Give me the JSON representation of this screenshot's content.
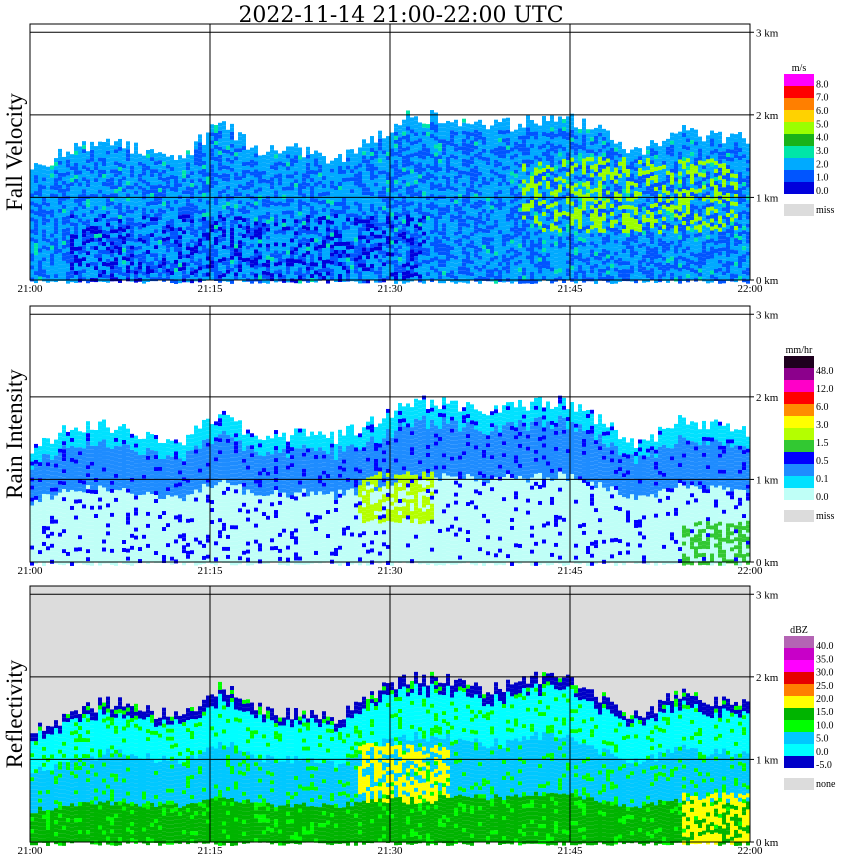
{
  "title": "2022-11-14   21:00-22:00 UTC",
  "x_ticks": [
    "21:00",
    "21:15",
    "21:30",
    "21:45",
    "22:00"
  ],
  "y_ticks": [
    "0 km",
    "1 km",
    "2 km",
    "3 km"
  ],
  "chart_data": [
    {
      "type": "heatmap",
      "ylabel": "Fall Velocity",
      "xlabel": "",
      "x_range": [
        "21:00",
        "22:00"
      ],
      "y_range_km": [
        0,
        3.1
      ],
      "legend": {
        "unit": "m/s",
        "labels": [
          "8.0",
          "7.0",
          "6.0",
          "5.0",
          "4.0",
          "3.0",
          "2.0",
          "1.0",
          "0.0"
        ],
        "colors": [
          "#ff00ff",
          "#ff0000",
          "#ff7f00",
          "#ffd200",
          "#9aff00",
          "#19b219",
          "#00e6a8",
          "#00aaff",
          "#0055ff",
          "#0000dc"
        ],
        "missing_label": "miss",
        "missing_color": "#dcdcdc"
      },
      "echo_top_km": [
        1.3,
        1.6,
        1.7,
        1.55,
        1.5,
        1.9,
        1.55,
        1.6,
        1.45,
        1.7,
        2.0,
        1.95,
        1.85,
        1.9,
        2.0,
        1.8,
        1.55,
        1.8,
        1.75,
        1.7
      ],
      "background": "#ffffff"
    },
    {
      "type": "heatmap",
      "ylabel": "Rain Intensity",
      "xlabel": "",
      "x_range": [
        "21:00",
        "22:00"
      ],
      "y_range_km": [
        0,
        3.1
      ],
      "legend": {
        "unit": "mm/hr",
        "labels": [
          "48.0",
          "12.0",
          "6.0",
          "3.0",
          "1.5",
          "0.5",
          "0.1",
          "0.0"
        ],
        "colors": [
          "#1e001e",
          "#8c008c",
          "#ff00c8",
          "#ff0000",
          "#ff8c00",
          "#ffff00",
          "#b4ff00",
          "#32c832",
          "#0000ff",
          "#1e8cff",
          "#00e1ff",
          "#bffff7"
        ],
        "missing_label": "miss",
        "missing_color": "#dcdcdc"
      },
      "echo_top_km": [
        1.4,
        1.6,
        1.65,
        1.5,
        1.45,
        1.8,
        1.5,
        1.55,
        1.5,
        1.7,
        1.95,
        1.9,
        1.8,
        1.9,
        1.95,
        1.7,
        1.4,
        1.7,
        1.65,
        1.6
      ],
      "background": "#ffffff"
    },
    {
      "type": "heatmap",
      "ylabel": "Reflectivity",
      "xlabel": "",
      "x_range": [
        "21:00",
        "22:00"
      ],
      "y_range_km": [
        0,
        3.1
      ],
      "legend": {
        "unit": "dBZ",
        "labels": [
          "40.0",
          "35.0",
          "30.0",
          "25.0",
          "20.0",
          "15.0",
          "10.0",
          "5.0",
          "0.0",
          "-5.0"
        ],
        "colors": [
          "#b464b4",
          "#c800c8",
          "#ff00ff",
          "#e60000",
          "#ff7f00",
          "#ffff00",
          "#00b400",
          "#00ff00",
          "#00c8ff",
          "#00ffff",
          "#0000c8"
        ],
        "missing_label": "none",
        "missing_color": "#dcdcdc"
      },
      "echo_top_km": [
        1.35,
        1.55,
        1.7,
        1.6,
        1.5,
        1.9,
        1.6,
        1.55,
        1.5,
        1.8,
        2.0,
        1.95,
        1.85,
        1.95,
        2.05,
        1.75,
        1.5,
        1.8,
        1.7,
        1.7
      ],
      "background": "#dcdcdc"
    }
  ]
}
